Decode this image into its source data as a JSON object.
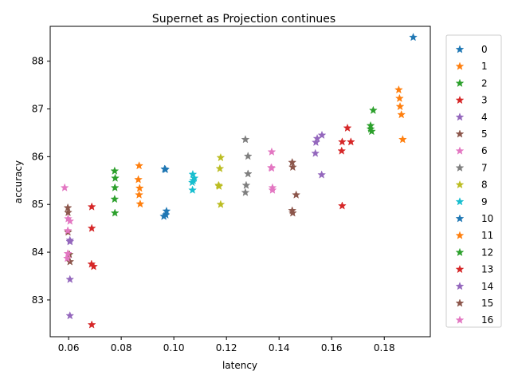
{
  "chart_data": {
    "type": "scatter",
    "title": "Supernet as Projection continues",
    "xlabel": "latency",
    "ylabel": "accuracy",
    "xlim": [
      0.053,
      0.1975
    ],
    "ylim": [
      82.23,
      88.73
    ],
    "xticks": [
      0.06,
      0.08,
      0.1,
      0.12,
      0.14,
      0.16,
      0.18
    ],
    "xtick_labels": [
      "0.06",
      "0.08",
      "0.10",
      "0.12",
      "0.14",
      "0.16",
      "0.18"
    ],
    "yticks": [
      83,
      84,
      85,
      86,
      87,
      88
    ],
    "ytick_labels": [
      "83",
      "84",
      "85",
      "86",
      "87",
      "88"
    ],
    "grid": false,
    "marker": "star",
    "legend_position": "right-outside",
    "series": [
      {
        "name": "0",
        "color": "#1f77b4",
        "points": [
          [
            0.191,
            88.5
          ]
        ]
      },
      {
        "name": "1",
        "color": "#ff7f0e",
        "points": [
          [
            0.1855,
            87.4
          ],
          [
            0.1858,
            87.22
          ],
          [
            0.186,
            87.05
          ],
          [
            0.1865,
            86.88
          ],
          [
            0.187,
            86.36
          ]
        ]
      },
      {
        "name": "2",
        "color": "#2ca02c",
        "points": [
          [
            0.1758,
            86.97
          ],
          [
            0.1748,
            86.65
          ],
          [
            0.1748,
            86.58
          ],
          [
            0.1752,
            86.53
          ]
        ]
      },
      {
        "name": "3",
        "color": "#d62728",
        "points": [
          [
            0.166,
            86.6
          ],
          [
            0.1673,
            86.31
          ],
          [
            0.164,
            86.31
          ],
          [
            0.1638,
            86.12
          ],
          [
            0.164,
            84.97
          ]
        ]
      },
      {
        "name": "4",
        "color": "#9467bd",
        "points": [
          [
            0.1563,
            86.45
          ],
          [
            0.1545,
            86.38
          ],
          [
            0.154,
            86.3
          ],
          [
            0.1538,
            86.07
          ],
          [
            0.1562,
            85.62
          ]
        ]
      },
      {
        "name": "5",
        "color": "#8c564b",
        "points": [
          [
            0.145,
            85.88
          ],
          [
            0.1452,
            85.78
          ],
          [
            0.1465,
            85.2
          ],
          [
            0.145,
            84.87
          ],
          [
            0.1452,
            84.82
          ]
        ]
      },
      {
        "name": "6",
        "color": "#e377c2",
        "points": [
          [
            0.1372,
            86.1
          ],
          [
            0.137,
            85.77
          ],
          [
            0.1372,
            85.76
          ],
          [
            0.1375,
            85.35
          ],
          [
            0.1375,
            85.3
          ]
        ]
      },
      {
        "name": "7",
        "color": "#7f7f7f",
        "points": [
          [
            0.1272,
            86.36
          ],
          [
            0.1282,
            86.01
          ],
          [
            0.1282,
            85.64
          ],
          [
            0.1275,
            85.4
          ],
          [
            0.1272,
            85.25
          ]
        ]
      },
      {
        "name": "8",
        "color": "#bcbd22",
        "points": [
          [
            0.1178,
            85.98
          ],
          [
            0.1175,
            85.75
          ],
          [
            0.117,
            85.4
          ],
          [
            0.1172,
            85.38
          ],
          [
            0.1178,
            85.0
          ]
        ]
      },
      {
        "name": "9",
        "color": "#17becf",
        "points": [
          [
            0.1072,
            85.63
          ],
          [
            0.1078,
            85.55
          ],
          [
            0.1074,
            85.5
          ],
          [
            0.107,
            85.46
          ],
          [
            0.1071,
            85.3
          ]
        ]
      },
      {
        "name": "10",
        "color": "#1f77b4",
        "points": [
          [
            0.0965,
            85.74
          ],
          [
            0.0968,
            85.73
          ],
          [
            0.0972,
            84.86
          ],
          [
            0.097,
            84.78
          ],
          [
            0.0962,
            84.75
          ]
        ]
      },
      {
        "name": "11",
        "color": "#ff7f0e",
        "points": [
          [
            0.0868,
            85.81
          ],
          [
            0.0865,
            85.52
          ],
          [
            0.087,
            85.34
          ],
          [
            0.0868,
            85.2
          ],
          [
            0.0872,
            85.01
          ]
        ]
      },
      {
        "name": "12",
        "color": "#2ca02c",
        "points": [
          [
            0.0775,
            85.7
          ],
          [
            0.0777,
            85.55
          ],
          [
            0.0776,
            85.35
          ],
          [
            0.0775,
            85.11
          ],
          [
            0.0776,
            84.82
          ]
        ]
      },
      {
        "name": "13",
        "color": "#d62728",
        "points": [
          [
            0.0688,
            84.95
          ],
          [
            0.0688,
            84.5
          ],
          [
            0.0687,
            83.75
          ],
          [
            0.0695,
            83.7
          ],
          [
            0.0688,
            82.48
          ]
        ]
      },
      {
        "name": "14",
        "color": "#9467bd",
        "points": [
          [
            0.0605,
            84.25
          ],
          [
            0.0605,
            84.22
          ],
          [
            0.0605,
            83.43
          ],
          [
            0.0605,
            82.67
          ]
        ]
      },
      {
        "name": "15",
        "color": "#8c564b",
        "points": [
          [
            0.0597,
            84.93
          ],
          [
            0.0598,
            84.83
          ],
          [
            0.0598,
            84.42
          ],
          [
            0.0603,
            83.95
          ],
          [
            0.0605,
            83.8
          ]
        ]
      },
      {
        "name": "16",
        "color": "#e377c2",
        "points": [
          [
            0.0585,
            85.35
          ],
          [
            0.0598,
            84.7
          ],
          [
            0.0605,
            84.65
          ],
          [
            0.0597,
            84.45
          ],
          [
            0.0597,
            83.97
          ],
          [
            0.0595,
            83.87
          ]
        ]
      }
    ],
    "legend_entries": [
      "0",
      "1",
      "2",
      "3",
      "4",
      "5",
      "6",
      "7",
      "8",
      "9",
      "10",
      "11",
      "12",
      "13",
      "14",
      "15",
      "16"
    ]
  }
}
